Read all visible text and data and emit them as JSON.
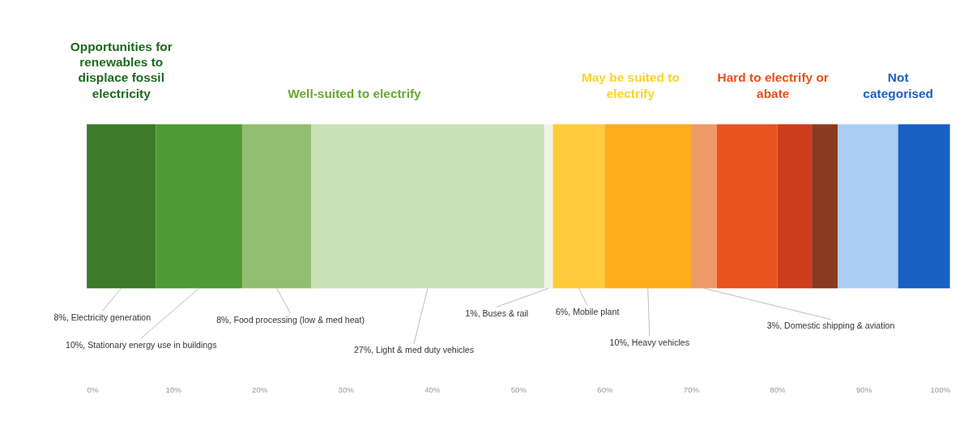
{
  "chart_data": {
    "type": "bar",
    "orientation": "horizontal",
    "stacked": true,
    "categories": [
      null
    ],
    "series": [
      {
        "color": "#3d7a2a",
        "values": [
          8
        ],
        "value_labels": [
          "8%, Electricity generation"
        ]
      },
      {
        "color": "#4f9a32",
        "values": [
          10
        ],
        "value_labels": [
          "10%, Stationary energy use in buildings"
        ]
      },
      {
        "color": "#93bd70",
        "values": [
          8
        ],
        "value_labels": [
          "8%, Food processing (low & med heat)"
        ]
      },
      {
        "color": "#c9dfb5",
        "values": [
          27
        ],
        "value_labels": [
          "27%, Light & med duty vehicles"
        ]
      },
      {
        "color": "#eef3e8",
        "values": [
          1
        ],
        "value_labels": [
          "1%, Buses & rail"
        ]
      },
      {
        "color": "#ffcb3a",
        "values": [
          6
        ],
        "value_labels": [
          "6%, Mobile plant"
        ]
      },
      {
        "color": "#ffad18",
        "values": [
          10
        ],
        "value_labels": [
          "10%, Heavy vehicles"
        ]
      },
      {
        "color": "#ee9a68",
        "values": [
          3
        ],
        "value_labels": [
          "3%, Domestic shipping & aviation"
        ]
      },
      {
        "color": "#e8541e",
        "values": [
          7
        ],
        "value_labels": [
          null
        ]
      },
      {
        "color": "#cc3e1c",
        "values": [
          4
        ],
        "value_labels": [
          null
        ]
      },
      {
        "color": "#8a3a1e",
        "values": [
          3
        ],
        "value_labels": [
          null
        ]
      },
      {
        "color": "#aacdf3",
        "values": [
          7
        ],
        "value_labels": [
          null
        ]
      },
      {
        "color": "#1a5fc4",
        "values": [
          6
        ],
        "value_labels": [
          null
        ]
      }
    ],
    "annotations": [
      "Opportunities for renewables to displace fossil electricity",
      "Well-suited to electrify",
      "May be suited to electrify",
      "Hard to electrify or abate",
      "Not categorised"
    ],
    "xlim": [
      0,
      100
    ],
    "xticks": [
      {
        "value": 0,
        "label": "0%"
      },
      {
        "value": 10,
        "label": "10%"
      },
      {
        "value": 20,
        "label": "20%"
      },
      {
        "value": 30,
        "label": "30%"
      },
      {
        "value": 40,
        "label": "40%"
      },
      {
        "value": 50,
        "label": "50%"
      },
      {
        "value": 60,
        "label": "60%"
      },
      {
        "value": 70,
        "label": "70%"
      },
      {
        "value": 80,
        "label": "80%"
      },
      {
        "value": 90,
        "label": "90%"
      },
      {
        "value": 100,
        "label": "100%"
      }
    ],
    "legend": false,
    "grid": false
  }
}
